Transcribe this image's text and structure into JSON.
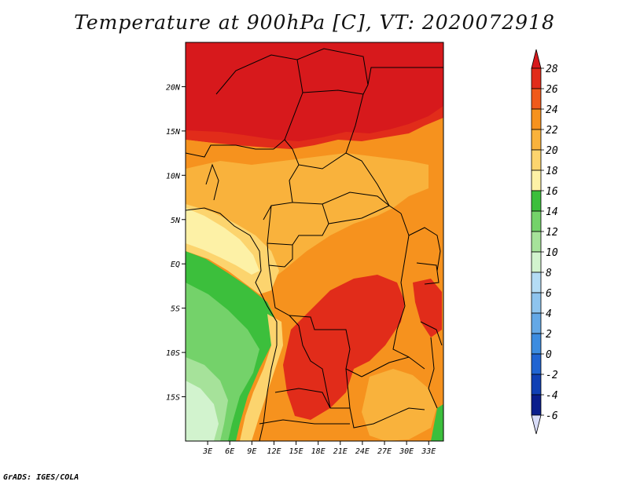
{
  "title": "Temperature at 900hPa [C], VT: 2020072918",
  "credit": "GrADS: IGES/COLA",
  "map": {
    "lon_range": [
      0,
      35
    ],
    "lat_range": [
      -20,
      25
    ],
    "lat_ticks": [
      {
        "value": 20,
        "label": "20N"
      },
      {
        "value": 15,
        "label": "15N"
      },
      {
        "value": 10,
        "label": "10N"
      },
      {
        "value": 5,
        "label": "5N"
      },
      {
        "value": 0,
        "label": "EQ"
      },
      {
        "value": -5,
        "label": "5S"
      },
      {
        "value": -10,
        "label": "10S"
      },
      {
        "value": -15,
        "label": "15S"
      }
    ],
    "lon_ticks": [
      {
        "value": 3,
        "label": "3E"
      },
      {
        "value": 6,
        "label": "6E"
      },
      {
        "value": 9,
        "label": "9E"
      },
      {
        "value": 12,
        "label": "12E"
      },
      {
        "value": 15,
        "label": "15E"
      },
      {
        "value": 18,
        "label": "18E"
      },
      {
        "value": 21,
        "label": "21E"
      },
      {
        "value": 24,
        "label": "24E"
      },
      {
        "value": 27,
        "label": "27E"
      },
      {
        "value": 30,
        "label": "30E"
      },
      {
        "value": 33,
        "label": "33E"
      }
    ]
  },
  "colorbar": {
    "levels": [
      "28",
      "26",
      "24",
      "22",
      "20",
      "18",
      "16",
      "14",
      "12",
      "10",
      "8",
      "6",
      "4",
      "2",
      "0",
      "-2",
      "-4",
      "-6"
    ],
    "colors": {
      "gt28": "#d7191c",
      "26_28": "#e12c1a",
      "24_26": "#f05a1a",
      "22_24": "#f6921e",
      "20_22": "#f9b23c",
      "18_20": "#fcd46e",
      "16_18": "#fdf1a6",
      "14_16": "#3cbf3c",
      "12_14": "#74d26a",
      "10_12": "#a6e29a",
      "8_10": "#d2f3ce",
      "6_8": "#b4dcf5",
      "4_6": "#8ec4ee",
      "2_4": "#64a8e6",
      "0_2": "#3c8ce0",
      "m2_0": "#2064d2",
      "m4_m2": "#1040b4",
      "m6_m4": "#0a1e8c",
      "lt_m6": "#d8dcf8"
    }
  }
}
